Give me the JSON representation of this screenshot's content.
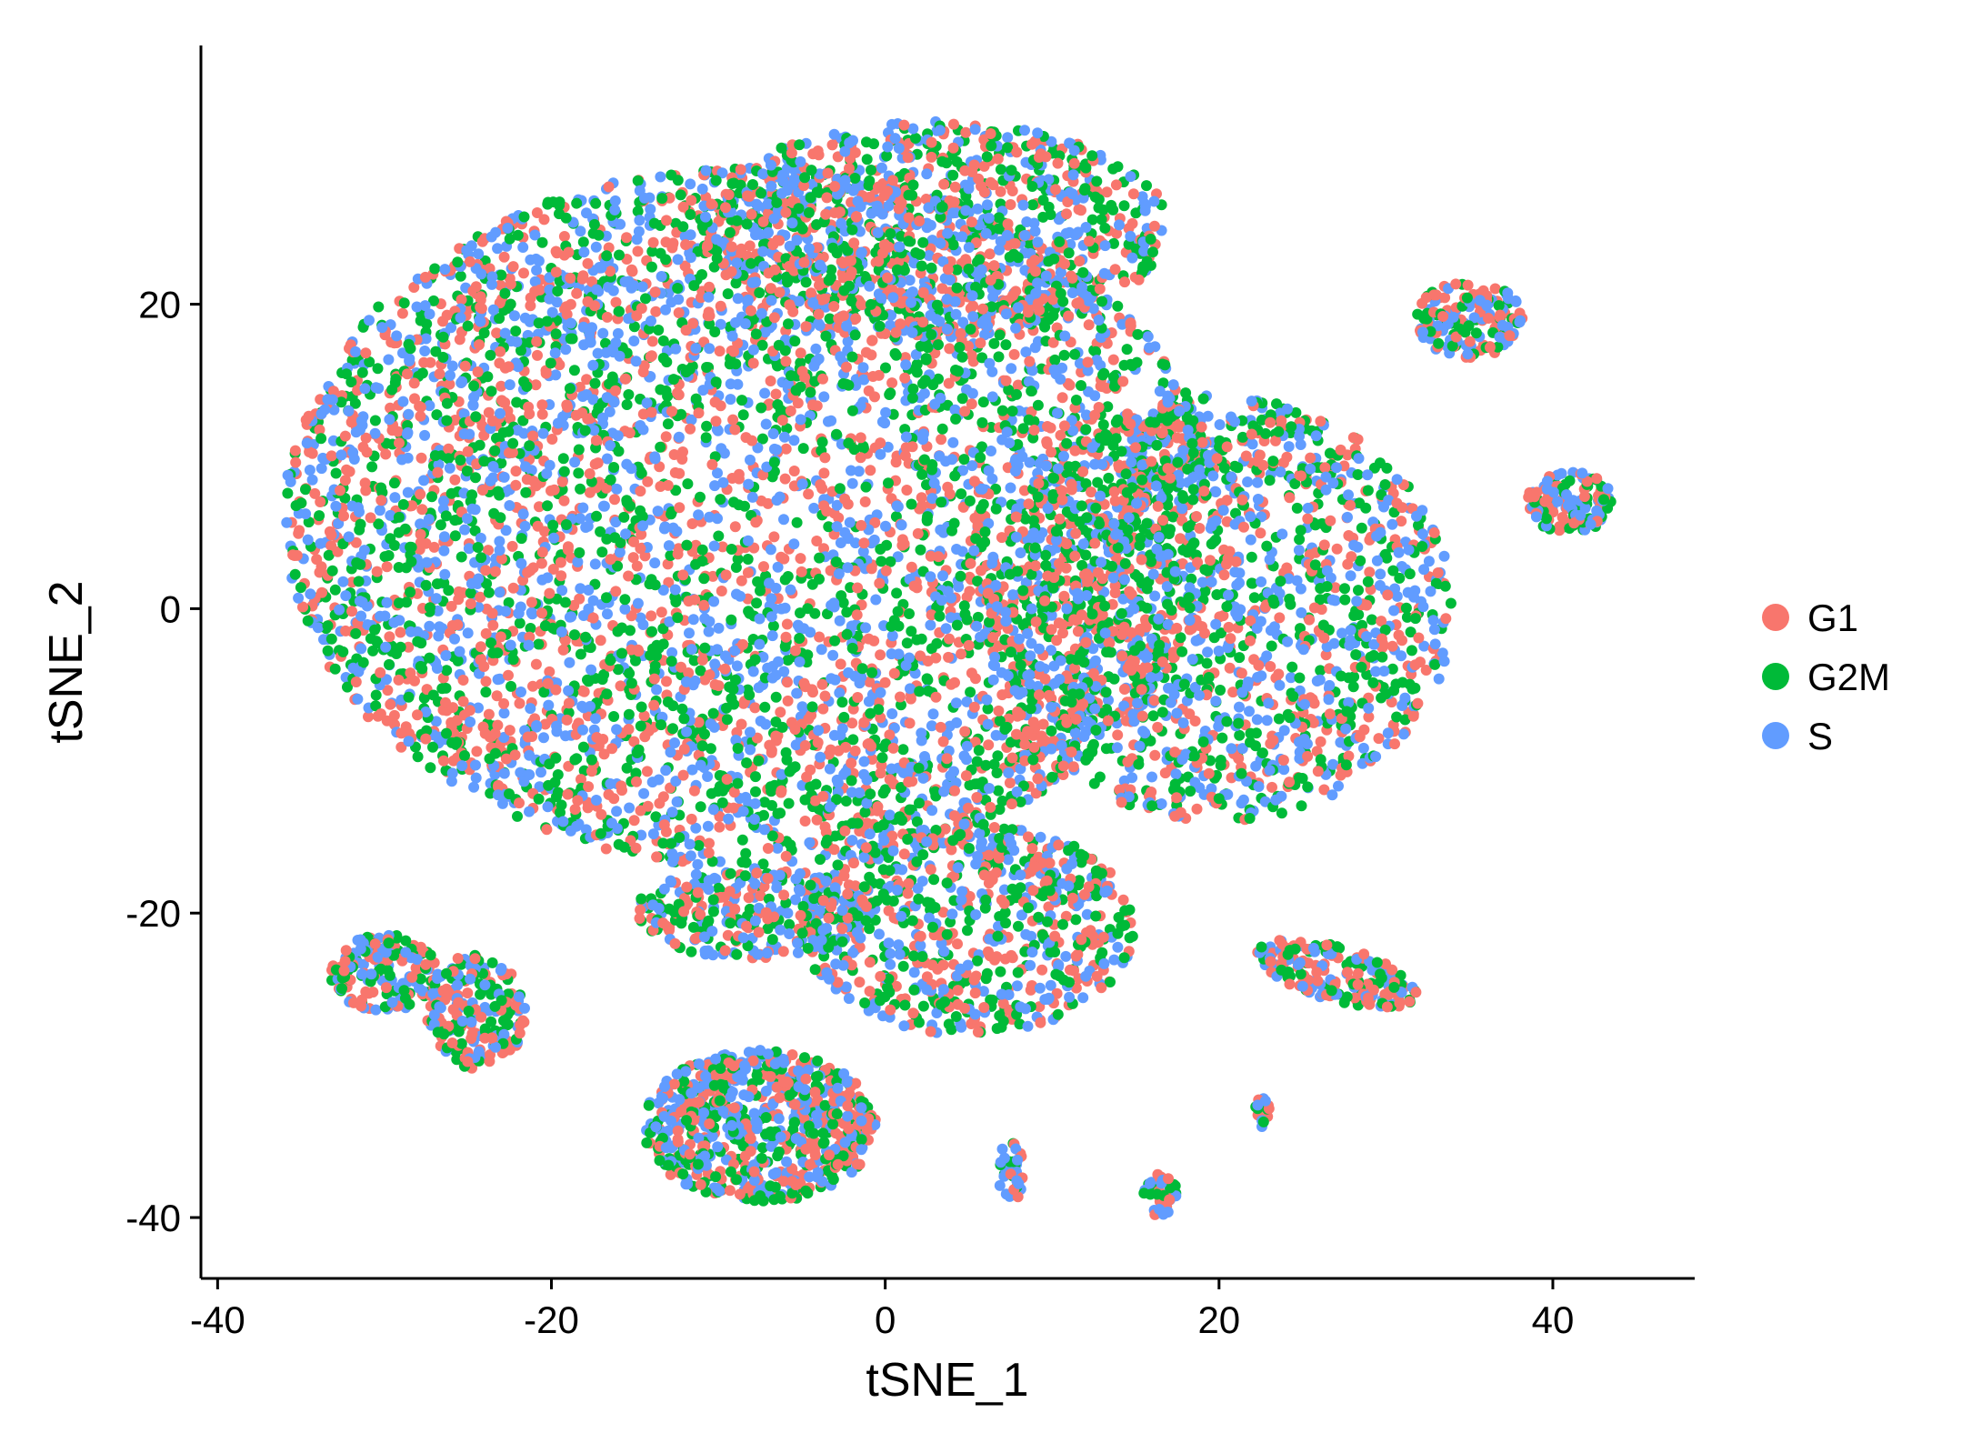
{
  "chart_data": {
    "type": "scatter",
    "title": "",
    "xlabel": "tSNE_1",
    "ylabel": "tSNE_2",
    "xlim": [
      -41,
      48.5
    ],
    "ylim": [
      -44,
      37
    ],
    "x_ticks": [
      -40,
      -20,
      0,
      20,
      40
    ],
    "y_ticks": [
      -40,
      -20,
      0,
      20
    ],
    "x_tick_labels": [
      "-40",
      "-20",
      "0",
      "20",
      "40"
    ],
    "y_tick_labels": [
      "-40",
      "-20",
      "0",
      "20"
    ],
    "grid": false,
    "legend_position": "right",
    "series": [
      {
        "name": "G1",
        "color": "#F8766D"
      },
      {
        "name": "G2M",
        "color": "#00BA38"
      },
      {
        "name": "S",
        "color": "#619CFF"
      }
    ],
    "clusters": [
      {
        "cx": -8,
        "cy": 6,
        "rx": 28,
        "ry": 23,
        "count": 5200,
        "rot": 0
      },
      {
        "cx": 20,
        "cy": 0,
        "rx": 14,
        "ry": 14,
        "count": 1500,
        "rot": 0
      },
      {
        "cx": 3,
        "cy": 25,
        "rx": 14,
        "ry": 7,
        "count": 900,
        "rot": 0
      },
      {
        "cx": 5,
        "cy": -21,
        "rx": 10,
        "ry": 7,
        "count": 700,
        "rot": 0
      },
      {
        "cx": -8,
        "cy": -20,
        "rx": 7,
        "ry": 3,
        "count": 280,
        "rot": 0
      },
      {
        "cx": -7.5,
        "cy": -34,
        "rx": 7,
        "ry": 5,
        "count": 700,
        "rot": 0
      },
      {
        "cx": -30,
        "cy": -24,
        "rx": 3.2,
        "ry": 2.6,
        "count": 160,
        "rot": 0
      },
      {
        "cx": -24.5,
        "cy": -26.5,
        "rx": 3,
        "ry": 3.8,
        "count": 190,
        "rot": 0
      },
      {
        "cx": 27,
        "cy": -24,
        "rx": 5,
        "ry": 1.8,
        "count": 190,
        "rot": -0.3
      },
      {
        "cx": 35,
        "cy": 19,
        "rx": 3.2,
        "ry": 2.5,
        "count": 160,
        "rot": 0
      },
      {
        "cx": 41,
        "cy": 7,
        "rx": 2.6,
        "ry": 2,
        "count": 130,
        "rot": 0
      },
      {
        "cx": 16.5,
        "cy": -38.5,
        "rx": 1,
        "ry": 1.4,
        "count": 40,
        "rot": 0
      },
      {
        "cx": 7.5,
        "cy": -37,
        "rx": 0.8,
        "ry": 2,
        "count": 35,
        "rot": 0
      },
      {
        "cx": 22.5,
        "cy": -33,
        "rx": 0.5,
        "ry": 1.2,
        "count": 14,
        "rot": 0
      }
    ]
  }
}
